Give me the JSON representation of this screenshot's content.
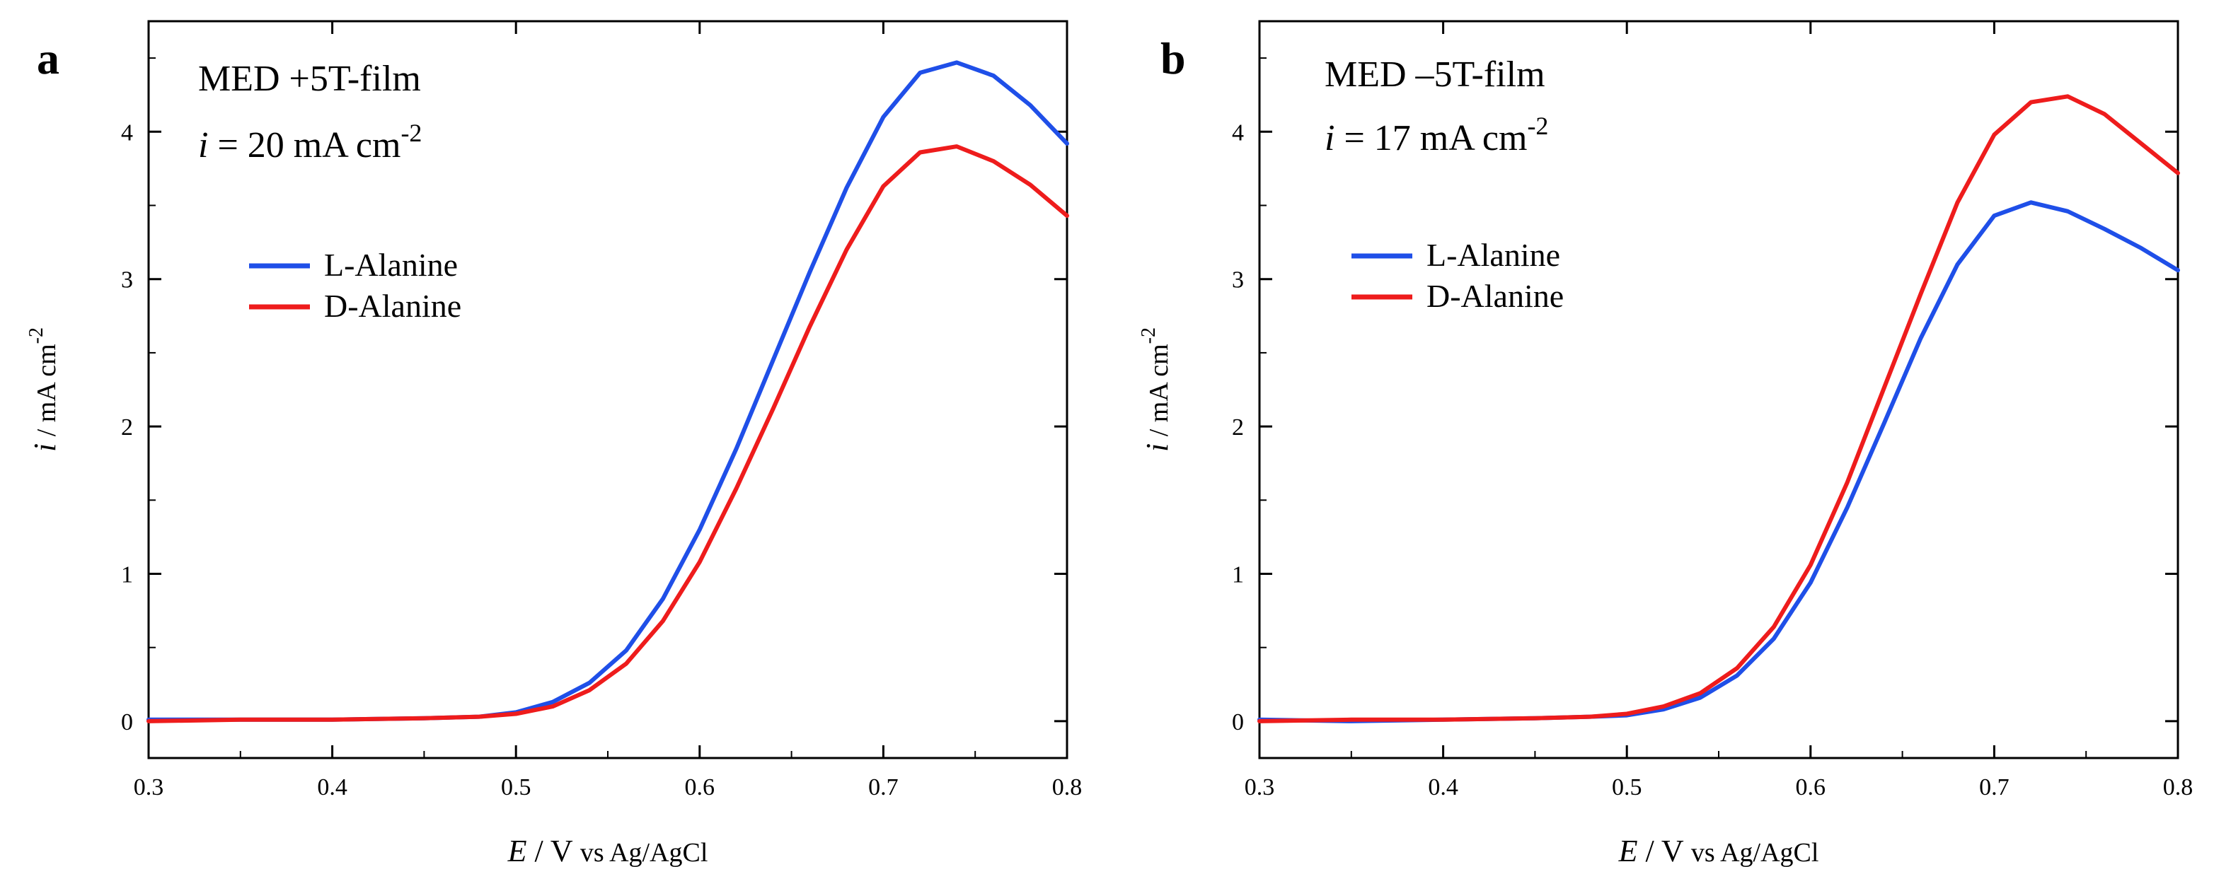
{
  "chart_data": [
    {
      "type": "line",
      "panel_label": "a",
      "annotation": {
        "line1": "MED +5T-film",
        "line2_var": "i",
        "line2_mid": " = 20 mA cm",
        "line2_sup": "-2"
      },
      "xlabel": {
        "var": "E",
        "mid": " / V ",
        "small": "vs Ag/AgCl"
      },
      "ylabel": {
        "var": "i",
        "mid": " / mA cm",
        "sup": "-2"
      },
      "xlim": [
        0.3,
        0.8
      ],
      "ylim": [
        -0.25,
        4.75
      ],
      "xticks": [
        "0.3",
        "0.4",
        "0.5",
        "0.6",
        "0.7",
        "0.8"
      ],
      "yticks": [
        "0",
        "1",
        "2",
        "3",
        "4"
      ],
      "legend_position": "middle-left",
      "series": [
        {
          "name": "L-Alanine",
          "color": "#1f4fe8",
          "x": [
            0.3,
            0.35,
            0.4,
            0.45,
            0.48,
            0.5,
            0.52,
            0.54,
            0.56,
            0.58,
            0.6,
            0.62,
            0.64,
            0.66,
            0.68,
            0.7,
            0.72,
            0.74,
            0.76,
            0.78,
            0.8
          ],
          "y": [
            0.01,
            0.01,
            0.01,
            0.02,
            0.03,
            0.06,
            0.13,
            0.26,
            0.48,
            0.83,
            1.3,
            1.85,
            2.45,
            3.05,
            3.62,
            4.1,
            4.4,
            4.47,
            4.38,
            4.18,
            3.92
          ]
        },
        {
          "name": "D-Alanine",
          "color": "#ee1c1c",
          "x": [
            0.3,
            0.35,
            0.4,
            0.45,
            0.48,
            0.5,
            0.52,
            0.54,
            0.56,
            0.58,
            0.6,
            0.62,
            0.64,
            0.66,
            0.68,
            0.7,
            0.72,
            0.74,
            0.76,
            0.78,
            0.8
          ],
          "y": [
            0.0,
            0.01,
            0.01,
            0.02,
            0.03,
            0.05,
            0.1,
            0.21,
            0.39,
            0.68,
            1.08,
            1.58,
            2.12,
            2.68,
            3.2,
            3.63,
            3.86,
            3.9,
            3.8,
            3.64,
            3.43
          ]
        }
      ]
    },
    {
      "type": "line",
      "panel_label": "b",
      "annotation": {
        "line1": "MED –5T-film",
        "line2_var": "i",
        "line2_mid": " = 17 mA cm",
        "line2_sup": "-2"
      },
      "xlabel": {
        "var": "E",
        "mid": " / V ",
        "small": "vs Ag/AgCl"
      },
      "ylabel": {
        "var": "i",
        "mid": " / mA cm",
        "sup": "-2"
      },
      "xlim": [
        0.3,
        0.8
      ],
      "ylim": [
        -0.25,
        4.75
      ],
      "xticks": [
        "0.3",
        "0.4",
        "0.5",
        "0.6",
        "0.7",
        "0.8"
      ],
      "yticks": [
        "0",
        "1",
        "2",
        "3",
        "4"
      ],
      "legend_position": "top-left",
      "series": [
        {
          "name": "L-Alanine",
          "color": "#1f4fe8",
          "x": [
            0.3,
            0.35,
            0.4,
            0.45,
            0.48,
            0.5,
            0.52,
            0.54,
            0.56,
            0.58,
            0.6,
            0.62,
            0.64,
            0.66,
            0.68,
            0.7,
            0.72,
            0.74,
            0.76,
            0.78,
            0.8
          ],
          "y": [
            0.01,
            0.0,
            0.01,
            0.02,
            0.03,
            0.04,
            0.08,
            0.16,
            0.31,
            0.56,
            0.94,
            1.45,
            2.02,
            2.6,
            3.1,
            3.43,
            3.52,
            3.46,
            3.34,
            3.21,
            3.06
          ]
        },
        {
          "name": "D-Alanine",
          "color": "#ee1c1c",
          "x": [
            0.3,
            0.35,
            0.4,
            0.45,
            0.48,
            0.5,
            0.52,
            0.54,
            0.56,
            0.58,
            0.6,
            0.62,
            0.64,
            0.66,
            0.68,
            0.7,
            0.72,
            0.74,
            0.76,
            0.78,
            0.8
          ],
          "y": [
            0.0,
            0.01,
            0.01,
            0.02,
            0.03,
            0.05,
            0.1,
            0.19,
            0.36,
            0.64,
            1.06,
            1.62,
            2.26,
            2.9,
            3.52,
            3.98,
            4.2,
            4.24,
            4.12,
            3.92,
            3.72
          ]
        }
      ]
    }
  ]
}
